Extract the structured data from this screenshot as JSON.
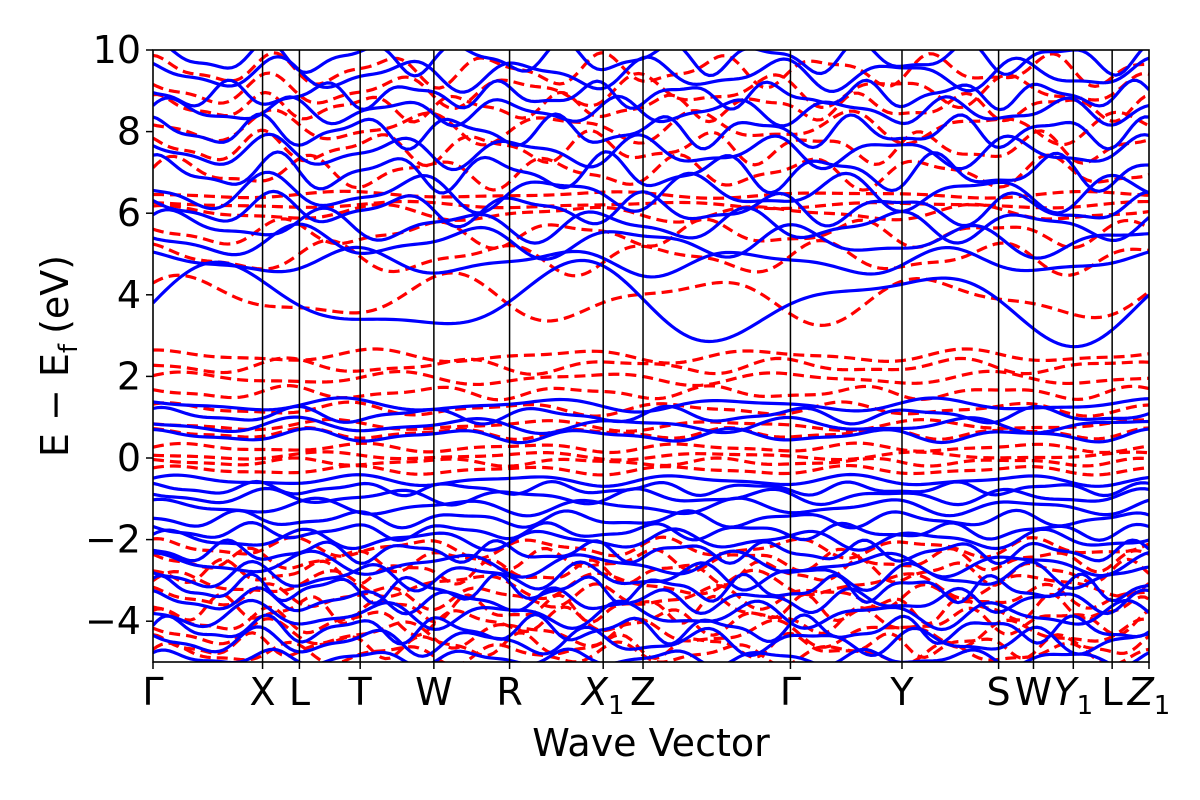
{
  "chart_data": {
    "type": "line",
    "xlabel": "Wave Vector",
    "ylabel": "E − E",
    "ylabel_sub": "f",
    "ylabel_unit": "(eV)",
    "ylim": [
      -5,
      10
    ],
    "yticks": [
      {
        "value": -4,
        "label": "−4"
      },
      {
        "value": -2,
        "label": "−2"
      },
      {
        "value": 0,
        "label": "0"
      },
      {
        "value": 2,
        "label": "2"
      },
      {
        "value": 4,
        "label": "4"
      },
      {
        "value": 6,
        "label": "6"
      },
      {
        "value": 8,
        "label": "8"
      },
      {
        "value": 10,
        "label": "10"
      }
    ],
    "xlim": [
      0,
      1
    ],
    "kpoints": [
      {
        "pos": 0.0,
        "label": "Γ",
        "sub": ""
      },
      {
        "pos": 0.11,
        "label": "X",
        "sub": ""
      },
      {
        "pos": 0.147,
        "label": "L",
        "sub": ""
      },
      {
        "pos": 0.208,
        "label": "T",
        "sub": ""
      },
      {
        "pos": 0.282,
        "label": "W",
        "sub": ""
      },
      {
        "pos": 0.358,
        "label": "R",
        "sub": ""
      },
      {
        "pos": 0.452,
        "label": "X",
        "sub": "1"
      },
      {
        "pos": 0.492,
        "label": "Z",
        "sub": ""
      },
      {
        "pos": 0.64,
        "label": "Γ",
        "sub": ""
      },
      {
        "pos": 0.752,
        "label": "Y",
        "sub": ""
      },
      {
        "pos": 0.849,
        "label": "S",
        "sub": ""
      },
      {
        "pos": 0.884,
        "label": "W",
        "sub": ""
      },
      {
        "pos": 0.924,
        "label": "Y",
        "sub": "1"
      },
      {
        "pos": 0.963,
        "label": "L",
        "sub": ""
      },
      {
        "pos": 1.0,
        "label": "Z",
        "sub": "1"
      }
    ],
    "series": [
      {
        "style": "dashed",
        "color": "#ff0000",
        "bands": [
          {
            "base": -4.8,
            "amp": 0.2,
            "f": 9,
            "ph": 0.3
          },
          {
            "base": -4.6,
            "amp": 0.22,
            "f": 11,
            "ph": 1.1
          },
          {
            "base": -4.3,
            "amp": 0.25,
            "f": 8,
            "ph": 2.0
          },
          {
            "base": -4.0,
            "amp": 0.24,
            "f": 10,
            "ph": 0.7
          },
          {
            "base": -3.7,
            "amp": 0.25,
            "f": 12,
            "ph": 2.6
          },
          {
            "base": -3.4,
            "amp": 0.22,
            "f": 9,
            "ph": 1.4
          },
          {
            "base": -3.1,
            "amp": 0.24,
            "f": 7,
            "ph": 0.2
          },
          {
            "base": -2.8,
            "amp": 0.22,
            "f": 11,
            "ph": 2.9
          },
          {
            "base": -2.5,
            "amp": 0.2,
            "f": 10,
            "ph": 1.8
          },
          {
            "base": -2.2,
            "amp": 0.18,
            "f": 8,
            "ph": 0.9
          },
          {
            "base": -0.3,
            "amp": 0.08,
            "f": 6,
            "ph": 0.4
          },
          {
            "base": -0.1,
            "amp": 0.07,
            "f": 7,
            "ph": 1.6
          },
          {
            "base": 0.05,
            "amp": 0.07,
            "f": 5,
            "ph": 2.4
          },
          {
            "base": 0.25,
            "amp": 0.08,
            "f": 6,
            "ph": 0.1
          },
          {
            "base": 0.6,
            "amp": 0.1,
            "f": 7,
            "ph": 1.2
          },
          {
            "base": 0.8,
            "amp": 0.1,
            "f": 5,
            "ph": 2.2
          },
          {
            "base": 1.2,
            "amp": 0.12,
            "f": 6,
            "ph": 0.6
          },
          {
            "base": 1.6,
            "amp": 0.12,
            "f": 7,
            "ph": 1.9
          },
          {
            "base": 1.95,
            "amp": 0.12,
            "f": 5,
            "ph": 0.3
          },
          {
            "base": 2.25,
            "amp": 0.14,
            "f": 6,
            "ph": 2.7
          },
          {
            "base": 2.5,
            "amp": 0.12,
            "f": 5,
            "ph": 1.0
          },
          {
            "base": 3.9,
            "amp": 0.45,
            "f": 4,
            "ph": 0.5
          },
          {
            "base": 4.9,
            "amp": 0.3,
            "f": 6,
            "ph": 1.3
          },
          {
            "base": 5.5,
            "amp": 0.25,
            "f": 7,
            "ph": 2.1
          },
          {
            "base": 6.0,
            "amp": 0.15,
            "f": 5,
            "ph": 0.8
          },
          {
            "base": 6.2,
            "amp": 0.06,
            "f": 4,
            "ph": 1.5
          },
          {
            "base": 6.45,
            "amp": 0.06,
            "f": 4,
            "ph": 2.9
          },
          {
            "base": 7.0,
            "amp": 0.3,
            "f": 8,
            "ph": 0.2
          },
          {
            "base": 7.6,
            "amp": 0.3,
            "f": 9,
            "ph": 1.7
          },
          {
            "base": 8.1,
            "amp": 0.3,
            "f": 7,
            "ph": 2.5
          },
          {
            "base": 8.6,
            "amp": 0.25,
            "f": 10,
            "ph": 0.9
          },
          {
            "base": 9.0,
            "amp": 0.3,
            "f": 8,
            "ph": 2.0
          },
          {
            "base": 9.5,
            "amp": 0.3,
            "f": 9,
            "ph": 1.1
          }
        ]
      },
      {
        "style": "solid",
        "color": "#0000ff",
        "bands": [
          {
            "base": -4.9,
            "amp": 0.15,
            "f": 10,
            "ph": 0.5
          },
          {
            "base": -4.5,
            "amp": 0.25,
            "f": 9,
            "ph": 1.9
          },
          {
            "base": -4.2,
            "amp": 0.25,
            "f": 11,
            "ph": 0.2
          },
          {
            "base": -3.85,
            "amp": 0.25,
            "f": 8,
            "ph": 2.8
          },
          {
            "base": -3.5,
            "amp": 0.22,
            "f": 10,
            "ph": 1.3
          },
          {
            "base": -3.2,
            "amp": 0.25,
            "f": 12,
            "ph": 0.6
          },
          {
            "base": -2.9,
            "amp": 0.25,
            "f": 9,
            "ph": 2.2
          },
          {
            "base": -2.6,
            "amp": 0.22,
            "f": 7,
            "ph": 1.0
          },
          {
            "base": -2.3,
            "amp": 0.2,
            "f": 11,
            "ph": 2.6
          },
          {
            "base": -2.0,
            "amp": 0.18,
            "f": 8,
            "ph": 0.4
          },
          {
            "base": -1.8,
            "amp": 0.15,
            "f": 10,
            "ph": 1.7
          },
          {
            "base": -1.5,
            "amp": 0.15,
            "f": 9,
            "ph": 2.9
          },
          {
            "base": -1.2,
            "amp": 0.15,
            "f": 7,
            "ph": 0.8
          },
          {
            "base": -0.95,
            "amp": 0.14,
            "f": 8,
            "ph": 2.1
          },
          {
            "base": -0.75,
            "amp": 0.12,
            "f": 10,
            "ph": 1.4
          },
          {
            "base": -0.55,
            "amp": 0.1,
            "f": 6,
            "ph": 0.3
          },
          {
            "base": 0.55,
            "amp": 0.12,
            "f": 7,
            "ph": 1.1
          },
          {
            "base": 0.8,
            "amp": 0.14,
            "f": 6,
            "ph": 2.4
          },
          {
            "base": 1.05,
            "amp": 0.15,
            "f": 8,
            "ph": 0.7
          },
          {
            "base": 1.3,
            "amp": 0.12,
            "f": 5,
            "ph": 1.9
          },
          {
            "base": 3.8,
            "amp": 0.75,
            "f": 3,
            "ph": 0.0
          },
          {
            "base": 4.8,
            "amp": 0.25,
            "f": 5,
            "ph": 1.5
          },
          {
            "base": 5.3,
            "amp": 0.3,
            "f": 6,
            "ph": 2.3
          },
          {
            "base": 5.7,
            "amp": 0.3,
            "f": 7,
            "ph": 0.5
          },
          {
            "base": 6.1,
            "amp": 0.3,
            "f": 8,
            "ph": 1.8
          },
          {
            "base": 6.5,
            "amp": 0.35,
            "f": 7,
            "ph": 2.7
          },
          {
            "base": 7.0,
            "amp": 0.35,
            "f": 9,
            "ph": 0.9
          },
          {
            "base": 7.5,
            "amp": 0.3,
            "f": 8,
            "ph": 2.0
          },
          {
            "base": 8.0,
            "amp": 0.3,
            "f": 10,
            "ph": 1.2
          },
          {
            "base": 8.5,
            "amp": 0.25,
            "f": 9,
            "ph": 0.3
          },
          {
            "base": 8.9,
            "amp": 0.25,
            "f": 11,
            "ph": 2.5
          },
          {
            "base": 9.4,
            "amp": 0.3,
            "f": 8,
            "ph": 1.6
          },
          {
            "base": 9.8,
            "amp": 0.3,
            "f": 10,
            "ph": 0.8
          }
        ]
      }
    ]
  }
}
